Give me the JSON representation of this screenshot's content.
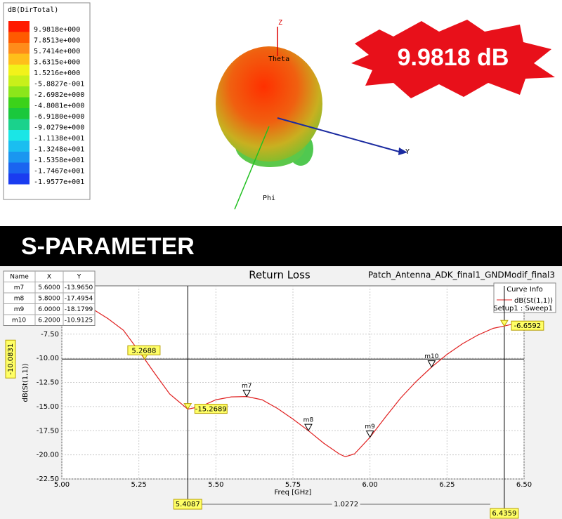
{
  "pattern": {
    "legend_title": "dB(DirTotal)",
    "legend_labels": [
      "9.9818e+000",
      "7.8513e+000",
      "5.7414e+000",
      "3.6315e+000",
      "1.5216e+000",
      "-5.8827e-001",
      "-2.6982e+000",
      "-4.8081e+000",
      "-6.9180e+000",
      "-9.0279e+000",
      "-1.1138e+001",
      "-1.3248e+001",
      "-1.5358e+001",
      "-1.7467e+001",
      "-1.9577e+001"
    ],
    "legend_colors": [
      "#ff1a00",
      "#ff5a00",
      "#ff8c1a",
      "#ffbf1a",
      "#f2f21a",
      "#c8f01a",
      "#8ce61a",
      "#3cd21a",
      "#1ac83c",
      "#1ad28c",
      "#1ae6e6",
      "#1abef0",
      "#1a96f0",
      "#1a64f0",
      "#1a3cf0"
    ],
    "axis_z": "Z",
    "axis_y": "Y",
    "axis_phi": "Phi",
    "axis_theta": "Theta"
  },
  "badge": "9.9818 dB",
  "section_title": "S-PARAMETER",
  "chart_data": {
    "type": "line",
    "title": "Return Loss",
    "subtitle": "Patch_Antenna_ADK_final1_GNDModif_final3",
    "x_label": "Freq [GHz]",
    "y_label": "dB(St(1,1))",
    "legend_title": "Curve Info",
    "legend_note": "Setup1 : Sweep1",
    "x": [
      5.1,
      5.15,
      5.2,
      5.2688,
      5.3,
      5.35,
      5.4087,
      5.45,
      5.5,
      5.55,
      5.6,
      5.65,
      5.7,
      5.75,
      5.8,
      5.85,
      5.9,
      5.92,
      5.95,
      6.0,
      6.05,
      6.1,
      6.15,
      6.2,
      6.25,
      6.3,
      6.35,
      6.4,
      6.4359,
      6.5
    ],
    "series": [
      {
        "name": "dB(St(1,1))",
        "color": "#e02020",
        "values": [
          -4.9,
          -5.9,
          -7.1,
          -10.08,
          -11.5,
          -13.7,
          -15.27,
          -15.0,
          -14.3,
          -14.0,
          -13.965,
          -14.3,
          -15.2,
          -16.3,
          -17.495,
          -18.8,
          -19.9,
          -20.2,
          -19.9,
          -18.18,
          -16.1,
          -14.1,
          -12.4,
          -10.91,
          -9.6,
          -8.5,
          -7.6,
          -6.9,
          -6.66,
          -6.2
        ]
      }
    ],
    "xlim": [
      5.0,
      6.5
    ],
    "xticks": [
      {
        "value": 5.0,
        "label": "5.00"
      },
      {
        "value": 5.25,
        "label": "5.25"
      },
      {
        "value": 5.5,
        "label": "5.50"
      },
      {
        "value": 5.75,
        "label": "5.75"
      },
      {
        "value": 6.0,
        "label": "6.00"
      },
      {
        "value": 6.25,
        "label": "6.25"
      },
      {
        "value": 6.5,
        "label": "6.50"
      }
    ],
    "ylim": [
      -22.5,
      -2.5
    ],
    "yticks": [
      {
        "value": -22.5,
        "label": "-22.50"
      },
      {
        "value": -20,
        "label": "-20.00"
      },
      {
        "value": -17.5,
        "label": "-17.50"
      },
      {
        "value": -15,
        "label": "-15.00"
      },
      {
        "value": -12.5,
        "label": "-12.50"
      },
      {
        "value": -10,
        "label": "-10.00"
      },
      {
        "value": -7.5,
        "label": "-7.50"
      }
    ],
    "grid": true,
    "table_header": [
      "Name",
      "X",
      "Y"
    ],
    "markers": [
      {
        "name": "m7",
        "x": 5.6,
        "y": -13.965,
        "x_label": "5.6000",
        "y_label": "-13.9650"
      },
      {
        "name": "m8",
        "x": 5.8,
        "y": -17.4954,
        "x_label": "5.8000",
        "y_label": "-17.4954"
      },
      {
        "name": "m9",
        "x": 6.0,
        "y": -18.1799,
        "x_label": "6.0000",
        "y_label": "-18.1799"
      },
      {
        "name": "m10",
        "x": 6.2,
        "y": -10.9125,
        "x_label": "6.2000",
        "y_label": "-10.9125"
      }
    ],
    "x_cursors": [
      {
        "value": 5.4087,
        "label": "5.4087"
      },
      {
        "value": 6.4359,
        "label": "6.4359"
      }
    ],
    "y_cursor": {
      "value": -10.0831,
      "label": "-10.0831"
    },
    "cursor_delta": "1.0272",
    "intersections": [
      {
        "x": 5.2688,
        "y": -10.0831,
        "label": "5.2688"
      },
      {
        "x": 5.4087,
        "y": -15.2689,
        "label": "-15.2689"
      },
      {
        "x": 6.4359,
        "y": -6.6592,
        "label": "-6.6592"
      }
    ]
  }
}
